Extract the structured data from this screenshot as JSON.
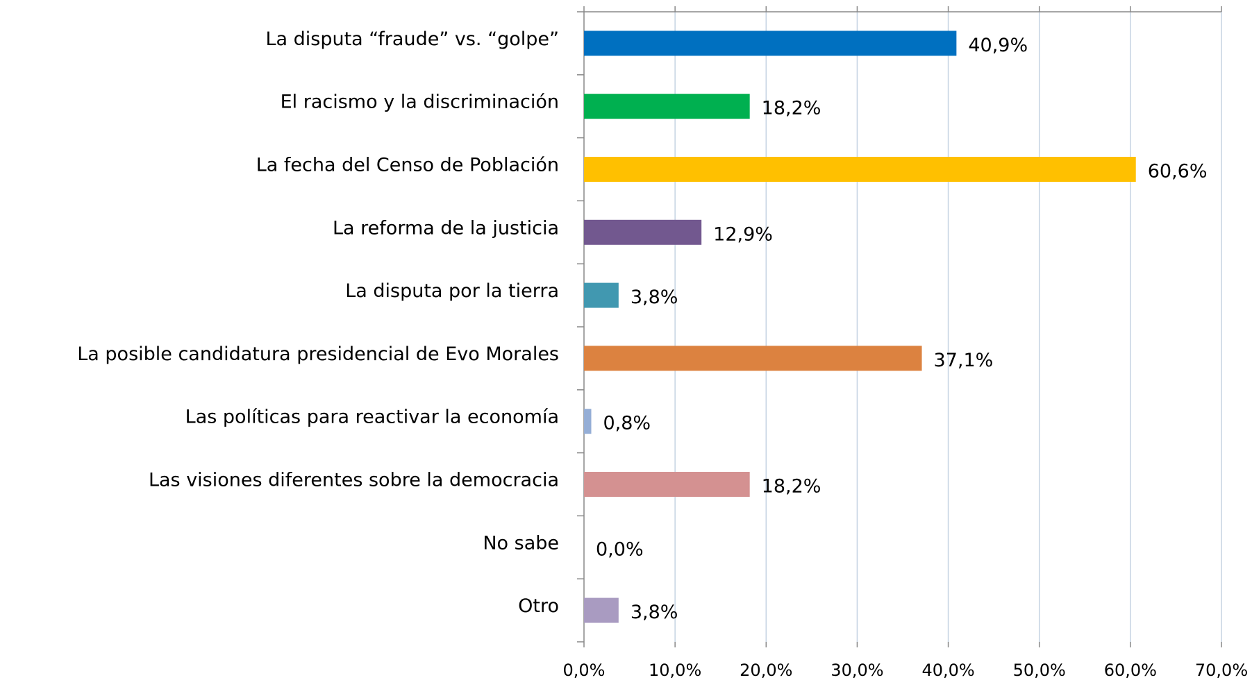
{
  "chart_data": {
    "type": "hbar",
    "categories": [
      "La disputa “fraude” vs. “golpe”",
      "El racismo y la discriminación",
      "La fecha del Censo de Población",
      "La reforma de la justicia",
      "La disputa por la tierra",
      "La posible candidatura presidencial de Evo Morales",
      "Las políticas para reactivar la economía",
      "Las visiones diferentes sobre la democracia",
      "No sabe",
      "Otro"
    ],
    "values": [
      40.9,
      18.2,
      60.6,
      12.9,
      3.8,
      37.1,
      0.8,
      18.2,
      0.0,
      3.8
    ],
    "value_labels": [
      "40,9%",
      "18,2%",
      "60,6%",
      "12,9%",
      "3,8%",
      "37,1%",
      "0,8%",
      "18,2%",
      "0,0%",
      "3,8%"
    ],
    "colors": [
      "#0070c0",
      "#00b050",
      "#ffc000",
      "#72588f",
      "#4198b0",
      "#dc8240",
      "#95aed6",
      "#d49191",
      "#a9c",
      "#a99bc1"
    ],
    "xlim": [
      0,
      70
    ],
    "xticks": [
      {
        "value": 0,
        "label": "0,0%"
      },
      {
        "value": 10,
        "label": "10,0%"
      },
      {
        "value": 20,
        "label": "20,0%"
      },
      {
        "value": 30,
        "label": "30,0%"
      },
      {
        "value": 40,
        "label": "40,0%"
      },
      {
        "value": 50,
        "label": "50,0%"
      },
      {
        "value": 60,
        "label": "60,0%"
      },
      {
        "value": 70,
        "label": "70,0%"
      }
    ],
    "grid": true
  }
}
